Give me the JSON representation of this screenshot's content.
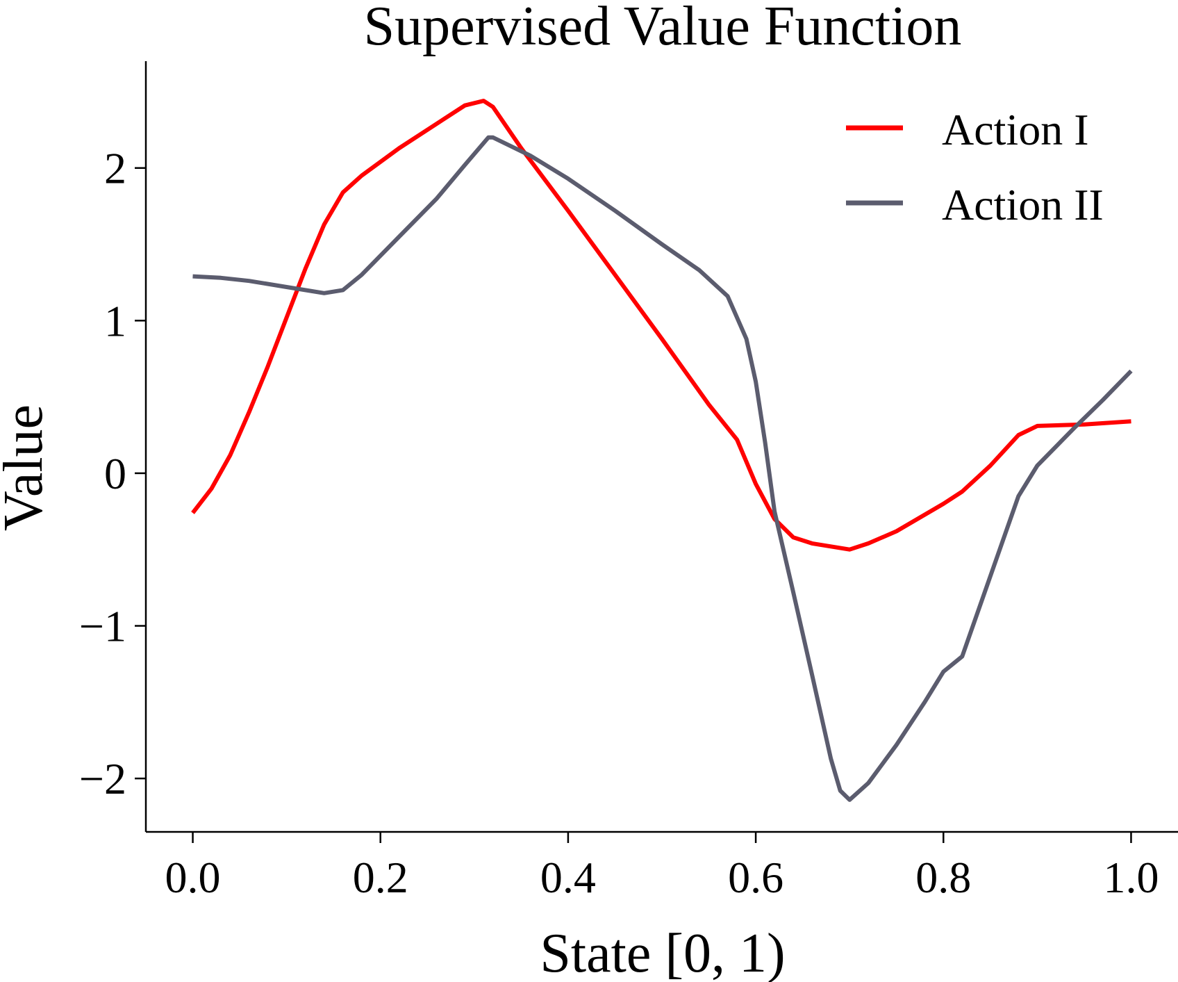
{
  "chart_data": {
    "type": "line",
    "title": "Supervised Value Function",
    "xlabel": "State [0, 1)",
    "ylabel": "Value",
    "xlim": [
      -0.05,
      1.05
    ],
    "ylim": [
      -2.35,
      2.7
    ],
    "xticks": [
      0.0,
      0.2,
      0.4,
      0.6,
      0.8,
      1.0
    ],
    "xtick_labels": [
      "0.0",
      "0.2",
      "0.4",
      "0.6",
      "0.8",
      "1.0"
    ],
    "yticks": [
      -2,
      -1,
      0,
      1,
      2
    ],
    "ytick_labels": [
      "−2",
      "−1",
      "0",
      "1",
      "2"
    ],
    "grid": false,
    "legend_position": "top-right",
    "series": [
      {
        "name": "Action I",
        "color": "#ff0000",
        "points": [
          [
            0.0,
            -0.26
          ],
          [
            0.02,
            -0.1
          ],
          [
            0.04,
            0.12
          ],
          [
            0.06,
            0.4
          ],
          [
            0.08,
            0.7
          ],
          [
            0.1,
            1.02
          ],
          [
            0.12,
            1.34
          ],
          [
            0.14,
            1.63
          ],
          [
            0.16,
            1.84
          ],
          [
            0.18,
            1.95
          ],
          [
            0.22,
            2.13
          ],
          [
            0.26,
            2.29
          ],
          [
            0.29,
            2.41
          ],
          [
            0.31,
            2.44
          ],
          [
            0.32,
            2.4
          ],
          [
            0.35,
            2.13
          ],
          [
            0.4,
            1.72
          ],
          [
            0.45,
            1.3
          ],
          [
            0.5,
            0.88
          ],
          [
            0.55,
            0.45
          ],
          [
            0.58,
            0.22
          ],
          [
            0.6,
            -0.07
          ],
          [
            0.62,
            -0.3
          ],
          [
            0.64,
            -0.42
          ],
          [
            0.66,
            -0.46
          ],
          [
            0.68,
            -0.48
          ],
          [
            0.7,
            -0.5
          ],
          [
            0.72,
            -0.46
          ],
          [
            0.75,
            -0.38
          ],
          [
            0.8,
            -0.2
          ],
          [
            0.82,
            -0.12
          ],
          [
            0.85,
            0.05
          ],
          [
            0.88,
            0.25
          ],
          [
            0.9,
            0.31
          ],
          [
            0.95,
            0.32
          ],
          [
            1.0,
            0.34
          ]
        ]
      },
      {
        "name": "Action II",
        "color": "#5b5c6e",
        "points": [
          [
            0.0,
            1.29
          ],
          [
            0.03,
            1.28
          ],
          [
            0.06,
            1.26
          ],
          [
            0.1,
            1.22
          ],
          [
            0.14,
            1.18
          ],
          [
            0.16,
            1.2
          ],
          [
            0.18,
            1.3
          ],
          [
            0.22,
            1.55
          ],
          [
            0.26,
            1.8
          ],
          [
            0.29,
            2.02
          ],
          [
            0.315,
            2.2
          ],
          [
            0.32,
            2.2
          ],
          [
            0.36,
            2.08
          ],
          [
            0.4,
            1.93
          ],
          [
            0.45,
            1.72
          ],
          [
            0.5,
            1.5
          ],
          [
            0.54,
            1.33
          ],
          [
            0.57,
            1.16
          ],
          [
            0.58,
            1.02
          ],
          [
            0.59,
            0.88
          ],
          [
            0.6,
            0.6
          ],
          [
            0.61,
            0.2
          ],
          [
            0.62,
            -0.25
          ],
          [
            0.64,
            -0.78
          ],
          [
            0.66,
            -1.32
          ],
          [
            0.68,
            -1.87
          ],
          [
            0.69,
            -2.08
          ],
          [
            0.7,
            -2.14
          ],
          [
            0.72,
            -2.03
          ],
          [
            0.75,
            -1.78
          ],
          [
            0.78,
            -1.5
          ],
          [
            0.8,
            -1.3
          ],
          [
            0.82,
            -1.2
          ],
          [
            0.84,
            -0.85
          ],
          [
            0.86,
            -0.5
          ],
          [
            0.88,
            -0.15
          ],
          [
            0.9,
            0.05
          ],
          [
            0.94,
            0.3
          ],
          [
            0.97,
            0.48
          ],
          [
            1.0,
            0.67
          ]
        ]
      }
    ]
  }
}
